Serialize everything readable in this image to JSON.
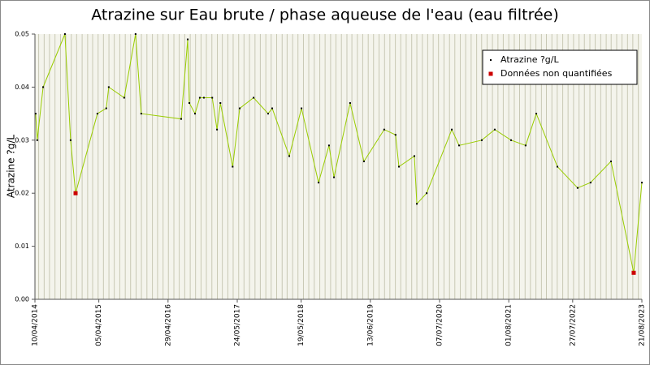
{
  "chart_data": {
    "type": "line",
    "title": "Atrazine sur Eau brute / phase aqueuse de l'eau (eau filtrée)",
    "y_label": "Atrazine ?g/L",
    "x": [
      "14/04/2014",
      "23/04/2014",
      "26/05/2014",
      "26/09/2014",
      "28/10/2014",
      "25/11/2014",
      "28/03/2015",
      "17/05/2015",
      "31/05/2015",
      "26/08/2015",
      "29/10/2015",
      "30/11/2015",
      "12/07/2016",
      "18/08/2016",
      "27/08/2016",
      "28/09/2016",
      "25/10/2016",
      "17/11/2016",
      "03/01/2017",
      "30/01/2017",
      "18/02/2017",
      "28/04/2017",
      "07/06/2017",
      "24/08/2017",
      "14/11/2017",
      "07/12/2017",
      "13/03/2018",
      "21/05/2018",
      "25/08/2018",
      "23/10/2018",
      "20/11/2018",
      "19/02/2019",
      "08/05/2019",
      "30/08/2019",
      "02/11/2019",
      "21/11/2019",
      "16/02/2020",
      "01/03/2020",
      "25/04/2020",
      "14/09/2020",
      "25/10/2020",
      "02/03/2021",
      "14/05/2021",
      "14/08/2021",
      "04/11/2021",
      "03/01/2022",
      "02/05/2022",
      "24/08/2022",
      "05/11/2022",
      "28/02/2023",
      "06/07/2023",
      "21/08/2023"
    ],
    "series": [
      {
        "name": "Atrazine ?g/L",
        "color": "#99cc00",
        "marker_color": "#000000",
        "values": [
          0.035,
          0.03,
          0.04,
          0.05,
          0.03,
          0.02,
          0.035,
          0.036,
          0.04,
          0.038,
          0.05,
          0.035,
          0.034,
          0.049,
          0.037,
          0.035,
          0.038,
          0.038,
          0.038,
          0.032,
          0.037,
          0.025,
          0.036,
          0.038,
          0.035,
          0.036,
          0.027,
          0.036,
          0.022,
          0.029,
          0.023,
          0.037,
          0.026,
          0.032,
          0.031,
          0.025,
          0.027,
          0.018,
          0.02,
          0.032,
          0.029,
          0.03,
          0.032,
          0.03,
          0.029,
          0.035,
          0.025,
          0.021,
          0.022,
          0.026,
          0.005,
          0.022
        ]
      },
      {
        "name": "Données non quantifiées",
        "color": "#cc0000",
        "values": [
          null,
          null,
          null,
          null,
          null,
          0.02,
          null,
          null,
          null,
          null,
          null,
          null,
          null,
          null,
          null,
          null,
          null,
          null,
          null,
          null,
          null,
          null,
          null,
          null,
          null,
          null,
          null,
          null,
          null,
          null,
          null,
          null,
          null,
          null,
          null,
          null,
          null,
          null,
          null,
          null,
          null,
          null,
          null,
          null,
          null,
          null,
          null,
          null,
          null,
          null,
          0.005,
          null
        ]
      }
    ],
    "xlim": [
      "10/04/2014",
      "21/08/2023"
    ],
    "xticks": [
      "10/04/2014",
      "05/04/2015",
      "29/04/2016",
      "24/05/2017",
      "19/05/2018",
      "13/06/2019",
      "07/07/2020",
      "01/08/2021",
      "27/07/2022",
      "21/08/2023"
    ],
    "ylim": [
      0,
      0.05
    ],
    "yticks": [
      {
        "value": 0,
        "label": "0.00"
      },
      0.01,
      0.02,
      0.03,
      0.04,
      0.05
    ],
    "grid": true,
    "legend": "upper right"
  }
}
